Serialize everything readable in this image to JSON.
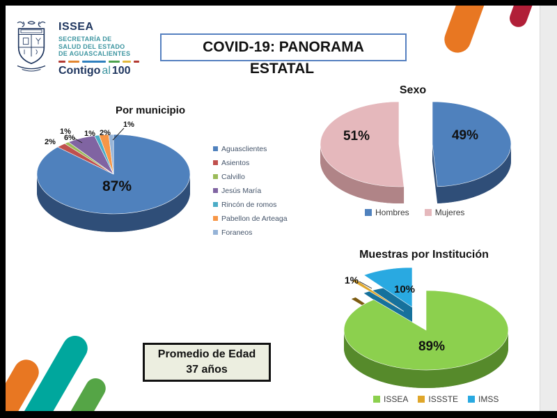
{
  "logo": {
    "org_abbr": "ISSEA",
    "org_lines": [
      "SECRETARÍA DE",
      "SALUD DEL ESTADO",
      "DE AGUASCALIENTES"
    ],
    "slogan": {
      "word1": "Contigo",
      "word2": "al",
      "word3": "100"
    }
  },
  "title": {
    "line1": "COVID-19: PANORAMA",
    "line2": "ESTATAL"
  },
  "info_box": {
    "line1": "Promedio de Edad",
    "line2": "37 años"
  },
  "chart_data": [
    {
      "type": "pie",
      "title": "Por municipio",
      "label_format": "percent",
      "legend_position": "right",
      "series": [
        {
          "name": "Aguasclientes",
          "value": 87,
          "color": "#4F81BD"
        },
        {
          "name": "Asientos",
          "value": 2,
          "color": "#C0504D"
        },
        {
          "name": "Calvillo",
          "value": 1,
          "color": "#9BBB59"
        },
        {
          "name": "Jesús María",
          "value": 6,
          "color": "#8064A2"
        },
        {
          "name": "Rincón de romos",
          "value": 1,
          "color": "#4BACC6"
        },
        {
          "name": "Pabellon de Arteaga",
          "value": 2,
          "color": "#F79646"
        },
        {
          "name": "Foraneos",
          "value": 1,
          "color": "#95B3D7"
        }
      ]
    },
    {
      "type": "pie",
      "title": "Sexo",
      "label_format": "percent",
      "legend_position": "bottom",
      "series": [
        {
          "name": "Hombres",
          "value": 49,
          "color": "#4F81BD"
        },
        {
          "name": "Mujeres",
          "value": 51,
          "color": "#E5B8BC"
        }
      ]
    },
    {
      "type": "pie",
      "title": "Muestras por Institución",
      "label_format": "percent",
      "legend_position": "bottom",
      "series": [
        {
          "name": "ISSEA",
          "value": 89,
          "color": "#8CD04E"
        },
        {
          "name": "ISSSTE",
          "value": 1,
          "color": "#DFA62A"
        },
        {
          "name": "IMSS",
          "value": 10,
          "color": "#29A9E1"
        }
      ]
    }
  ],
  "decor": {
    "top_right_bars": [
      "#E87722",
      "#B11F38"
    ],
    "bottom_left_bars": [
      "#E87722",
      "#00A79D",
      "#55A546"
    ],
    "brand_dashes": [
      "#B23831",
      "#E2862F",
      "#2E7FBE",
      "#4CA24C",
      "#E2B93B",
      "#B23831"
    ],
    "brand_navy": "#1E355E",
    "brand_teal": "#3D95A0"
  }
}
